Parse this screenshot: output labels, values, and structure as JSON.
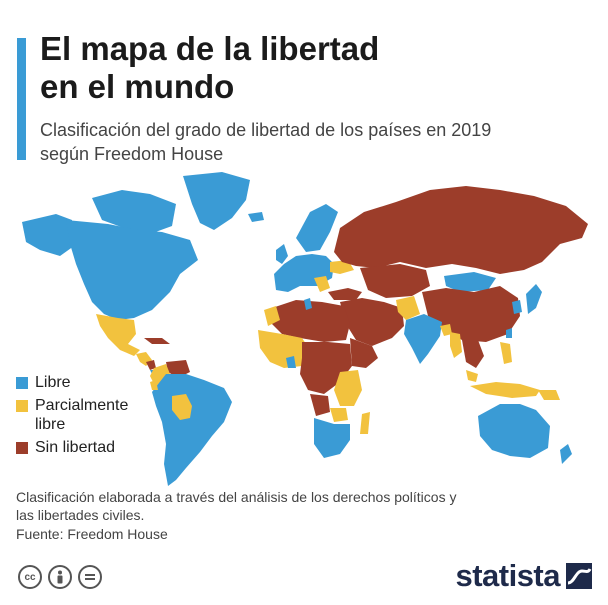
{
  "header": {
    "title_line1": "El mapa de la libertad",
    "title_line2": "en el mundo",
    "subtitle_line1": "Clasificación del grado de libertad de los países en 2019",
    "subtitle_line2": "según Freedom House"
  },
  "legend": {
    "items": [
      {
        "label": "Libre",
        "color": "#3a9bd5"
      },
      {
        "label": "Parcialmente libre",
        "color": "#f2c23e"
      },
      {
        "label": "Sin libertad",
        "color": "#9c3d2a"
      }
    ]
  },
  "footer": {
    "note_line1": "Clasificación elaborada a través del análisis de los derechos políticos y",
    "note_line2": "las libertades civiles.",
    "source": "Fuente: Freedom House",
    "brand": "statista"
  },
  "colors": {
    "free": "#3a9bd5",
    "partly": "#f2c23e",
    "notfree": "#9c3d2a",
    "accent": "#3a9bd5"
  },
  "icons": [
    "creative-commons-icon",
    "attribution-icon",
    "no-derivatives-icon",
    "statista-logo-icon"
  ]
}
